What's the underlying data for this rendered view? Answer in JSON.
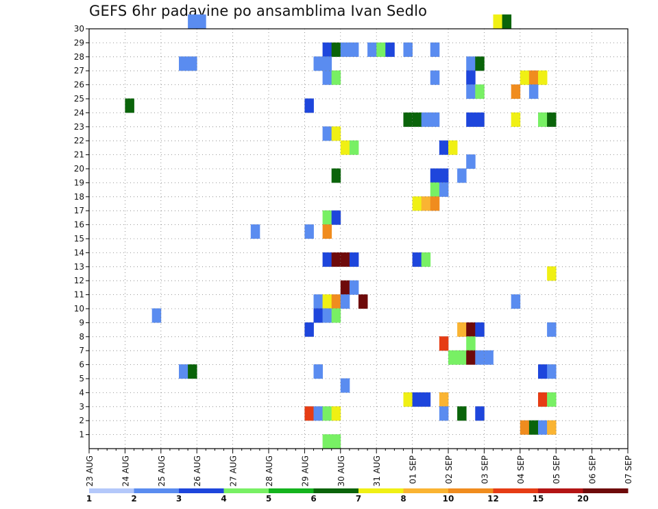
{
  "chart_data": {
    "type": "heatmap",
    "title": "GEFS 6hr padavine po ansamblima Ivan Sedlo",
    "xlabel": "",
    "ylabel": "",
    "x_tick_labels": [
      "23 AUG",
      "24 AUG",
      "25 AUG",
      "26 AUG",
      "27 AUG",
      "28 AUG",
      "29 AUG",
      "30 AUG",
      "31 AUG",
      "01 SEP",
      "02 SEP",
      "03 SEP",
      "04 SEP",
      "05 SEP",
      "06 SEP",
      "07 SEP"
    ],
    "y_tick_labels": [
      "1",
      "2",
      "3",
      "4",
      "5",
      "6",
      "7",
      "8",
      "9",
      "10",
      "11",
      "12",
      "13",
      "14",
      "15",
      "16",
      "17",
      "18",
      "19",
      "20",
      "21",
      "22",
      "23",
      "24",
      "25",
      "26",
      "27",
      "28",
      "29",
      "30"
    ],
    "grid": true,
    "x_unit": "6-hour step since 23 AUG 00z",
    "ylim": [
      0,
      30
    ],
    "legend": {
      "labels": [
        "1",
        "2",
        "3",
        "4",
        "5",
        "6",
        "7",
        "8",
        "10",
        "12",
        "15",
        "20"
      ],
      "colors": [
        "#b4c8fa",
        "#5a8cf0",
        "#1e46dc",
        "#78f064",
        "#14b41e",
        "#0a640a",
        "#f0f014",
        "#fab432",
        "#f08c1e",
        "#e63c14",
        "#b41414",
        "#6e0a0a"
      ]
    },
    "cells": [
      [
        11,
        30,
        1
      ],
      [
        12,
        30,
        1
      ],
      [
        45,
        30,
        6
      ],
      [
        46,
        30,
        5
      ],
      [
        26,
        28,
        2
      ],
      [
        27,
        28,
        5
      ],
      [
        28,
        28,
        1
      ],
      [
        29,
        28,
        1
      ],
      [
        31,
        28,
        1
      ],
      [
        32,
        28,
        3
      ],
      [
        33,
        28,
        2
      ],
      [
        35,
        28,
        1
      ],
      [
        38,
        28,
        1
      ],
      [
        10,
        27,
        1
      ],
      [
        11,
        27,
        1
      ],
      [
        25,
        27,
        1
      ],
      [
        26,
        27,
        1
      ],
      [
        42,
        27,
        1
      ],
      [
        43,
        27,
        5
      ],
      [
        26,
        26,
        1
      ],
      [
        27,
        26,
        3
      ],
      [
        38,
        26,
        1
      ],
      [
        42,
        26,
        2
      ],
      [
        48,
        26,
        6
      ],
      [
        49,
        26,
        8
      ],
      [
        50,
        26,
        6
      ],
      [
        42,
        25,
        1
      ],
      [
        43,
        25,
        3
      ],
      [
        47,
        25,
        8
      ],
      [
        49,
        25,
        1
      ],
      [
        24,
        24,
        2
      ],
      [
        4,
        24,
        5
      ],
      [
        35,
        23,
        5
      ],
      [
        36,
        23,
        5
      ],
      [
        37,
        23,
        1
      ],
      [
        38,
        23,
        1
      ],
      [
        42,
        23,
        2
      ],
      [
        43,
        23,
        2
      ],
      [
        47,
        23,
        6
      ],
      [
        50,
        23,
        3
      ],
      [
        51,
        23,
        5
      ],
      [
        26,
        22,
        1
      ],
      [
        27,
        22,
        6
      ],
      [
        28,
        21,
        6
      ],
      [
        29,
        21,
        3
      ],
      [
        39,
        21,
        2
      ],
      [
        40,
        21,
        6
      ],
      [
        42,
        20,
        1
      ],
      [
        27,
        19,
        5
      ],
      [
        38,
        19,
        2
      ],
      [
        39,
        19,
        2
      ],
      [
        41,
        19,
        1
      ],
      [
        38,
        18,
        3
      ],
      [
        39,
        18,
        1
      ],
      [
        36,
        17,
        6
      ],
      [
        37,
        17,
        7
      ],
      [
        38,
        17,
        8
      ],
      [
        26,
        16,
        3
      ],
      [
        27,
        16,
        2
      ],
      [
        18,
        15,
        1
      ],
      [
        24,
        15,
        1
      ],
      [
        26,
        15,
        8
      ],
      [
        26,
        13,
        2
      ],
      [
        27,
        13,
        11
      ],
      [
        28,
        13,
        11
      ],
      [
        29,
        13,
        2
      ],
      [
        36,
        13,
        2
      ],
      [
        37,
        13,
        3
      ],
      [
        51,
        12,
        6
      ],
      [
        28,
        11,
        11
      ],
      [
        29,
        11,
        1
      ],
      [
        25,
        10,
        1
      ],
      [
        26,
        10,
        6
      ],
      [
        27,
        10,
        8
      ],
      [
        28,
        10,
        1
      ],
      [
        30,
        10,
        11
      ],
      [
        47,
        10,
        1
      ],
      [
        7,
        9,
        1
      ],
      [
        25,
        9,
        2
      ],
      [
        26,
        9,
        1
      ],
      [
        27,
        9,
        3
      ],
      [
        24,
        8,
        2
      ],
      [
        41,
        8,
        7
      ],
      [
        42,
        8,
        11
      ],
      [
        43,
        8,
        2
      ],
      [
        51,
        8,
        1
      ],
      [
        39,
        7,
        9
      ],
      [
        42,
        7,
        3
      ],
      [
        40,
        6,
        3
      ],
      [
        41,
        6,
        3
      ],
      [
        42,
        6,
        11
      ],
      [
        43,
        6,
        1
      ],
      [
        44,
        6,
        1
      ],
      [
        10,
        5,
        1
      ],
      [
        11,
        5,
        5
      ],
      [
        25,
        5,
        1
      ],
      [
        50,
        5,
        2
      ],
      [
        51,
        5,
        1
      ],
      [
        28,
        4,
        1
      ],
      [
        35,
        3,
        6
      ],
      [
        36,
        3,
        2
      ],
      [
        37,
        3,
        2
      ],
      [
        39,
        3,
        7
      ],
      [
        50,
        3,
        9
      ],
      [
        51,
        3,
        3
      ],
      [
        24,
        2,
        9
      ],
      [
        25,
        2,
        1
      ],
      [
        26,
        2,
        3
      ],
      [
        27,
        2,
        6
      ],
      [
        39,
        2,
        1
      ],
      [
        41,
        2,
        5
      ],
      [
        43,
        2,
        2
      ],
      [
        48,
        1,
        8
      ],
      [
        49,
        1,
        5
      ],
      [
        50,
        1,
        1
      ],
      [
        51,
        1,
        7
      ],
      [
        26,
        0,
        3
      ],
      [
        27,
        0,
        3
      ]
    ]
  }
}
